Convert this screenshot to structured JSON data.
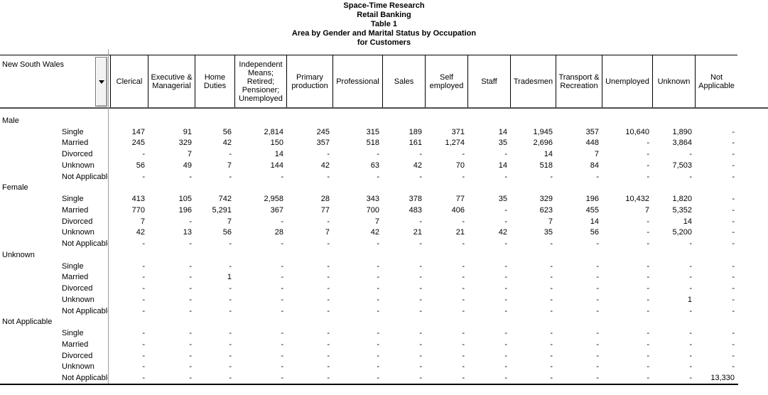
{
  "title": {
    "lines": [
      "Space-Time Research",
      "Retail Banking",
      "Table 1",
      "Area by Gender and Marital Status by Occupation",
      "for Customers"
    ]
  },
  "table": {
    "row_axis": {
      "label": "New South Wales",
      "dropdown_icon": "triangle-down"
    },
    "empty_cell": "-",
    "columns": [
      "Clerical",
      "Executive & Managerial",
      "Home Duties",
      "Independent Means; Retired; Pensioner; Unemployed",
      "Primary production",
      "Professional",
      "Sales",
      "Self employed",
      "Staff",
      "Tradesmen",
      "Transport & Recreation",
      "Unemployed",
      "Unknown",
      "Not Applicable"
    ],
    "row_groups": [
      {
        "label": "Male",
        "rows": [
          {
            "label": "Single",
            "values": [
              "147",
              "91",
              "56",
              "2,814",
              "245",
              "315",
              "189",
              "371",
              "14",
              "1,945",
              "357",
              "10,640",
              "1,890",
              "-"
            ]
          },
          {
            "label": "Married",
            "values": [
              "245",
              "329",
              "42",
              "150",
              "357",
              "518",
              "161",
              "1,274",
              "35",
              "2,696",
              "448",
              "-",
              "3,864",
              "-"
            ]
          },
          {
            "label": "Divorced",
            "values": [
              "-",
              "7",
              "-",
              "14",
              "-",
              "-",
              "-",
              "-",
              "-",
              "14",
              "7",
              "-",
              "-",
              "-"
            ]
          },
          {
            "label": "Unknown",
            "values": [
              "56",
              "49",
              "7",
              "144",
              "42",
              "63",
              "42",
              "70",
              "14",
              "518",
              "84",
              "-",
              "7,503",
              "-"
            ]
          },
          {
            "label": "Not Applicable",
            "values": [
              "-",
              "-",
              "-",
              "-",
              "-",
              "-",
              "-",
              "-",
              "-",
              "-",
              "-",
              "-",
              "-",
              "-"
            ]
          }
        ]
      },
      {
        "label": "Female",
        "rows": [
          {
            "label": "Single",
            "values": [
              "413",
              "105",
              "742",
              "2,958",
              "28",
              "343",
              "378",
              "77",
              "35",
              "329",
              "196",
              "10,432",
              "1,820",
              "-"
            ]
          },
          {
            "label": "Married",
            "values": [
              "770",
              "196",
              "5,291",
              "367",
              "77",
              "700",
              "483",
              "406",
              "-",
              "623",
              "455",
              "7",
              "5,352",
              "-"
            ]
          },
          {
            "label": "Divorced",
            "values": [
              "7",
              "-",
              "7",
              "-",
              "-",
              "7",
              "-",
              "-",
              "-",
              "7",
              "14",
              "-",
              "14",
              "-"
            ]
          },
          {
            "label": "Unknown",
            "values": [
              "42",
              "13",
              "56",
              "28",
              "7",
              "42",
              "21",
              "21",
              "42",
              "35",
              "56",
              "-",
              "5,200",
              "-"
            ]
          },
          {
            "label": "Not Applicable",
            "values": [
              "-",
              "-",
              "-",
              "-",
              "-",
              "-",
              "-",
              "-",
              "-",
              "-",
              "-",
              "-",
              "-",
              "-"
            ]
          }
        ]
      },
      {
        "label": "Unknown",
        "rows": [
          {
            "label": "Single",
            "values": [
              "-",
              "-",
              "-",
              "-",
              "-",
              "-",
              "-",
              "-",
              "-",
              "-",
              "-",
              "-",
              "-",
              "-"
            ]
          },
          {
            "label": "Married",
            "values": [
              "-",
              "-",
              "1",
              "-",
              "-",
              "-",
              "-",
              "-",
              "-",
              "-",
              "-",
              "-",
              "-",
              "-"
            ]
          },
          {
            "label": "Divorced",
            "values": [
              "-",
              "-",
              "-",
              "-",
              "-",
              "-",
              "-",
              "-",
              "-",
              "-",
              "-",
              "-",
              "-",
              "-"
            ]
          },
          {
            "label": "Unknown",
            "values": [
              "-",
              "-",
              "-",
              "-",
              "-",
              "-",
              "-",
              "-",
              "-",
              "-",
              "-",
              "-",
              "1",
              "-"
            ]
          },
          {
            "label": "Not Applicable",
            "values": [
              "-",
              "-",
              "-",
              "-",
              "-",
              "-",
              "-",
              "-",
              "-",
              "-",
              "-",
              "-",
              "-",
              "-"
            ]
          }
        ]
      },
      {
        "label": "Not Applicable",
        "rows": [
          {
            "label": "Single",
            "values": [
              "-",
              "-",
              "-",
              "-",
              "-",
              "-",
              "-",
              "-",
              "-",
              "-",
              "-",
              "-",
              "-",
              "-"
            ]
          },
          {
            "label": "Married",
            "values": [
              "-",
              "-",
              "-",
              "-",
              "-",
              "-",
              "-",
              "-",
              "-",
              "-",
              "-",
              "-",
              "-",
              "-"
            ]
          },
          {
            "label": "Divorced",
            "values": [
              "-",
              "-",
              "-",
              "-",
              "-",
              "-",
              "-",
              "-",
              "-",
              "-",
              "-",
              "-",
              "-",
              "-"
            ]
          },
          {
            "label": "Unknown",
            "values": [
              "-",
              "-",
              "-",
              "-",
              "-",
              "-",
              "-",
              "-",
              "-",
              "-",
              "-",
              "-",
              "-",
              "-"
            ]
          },
          {
            "label": "Not Applicable",
            "values": [
              "-",
              "-",
              "-",
              "-",
              "-",
              "-",
              "-",
              "-",
              "-",
              "-",
              "-",
              "-",
              "-",
              "13,330"
            ]
          }
        ]
      }
    ]
  },
  "colors": {
    "text": "#000000",
    "grid_line": "#000000",
    "header_separator": "#4f4f4f",
    "column_divider": "#a0a0a0",
    "button_face": "#f2f2f2"
  }
}
